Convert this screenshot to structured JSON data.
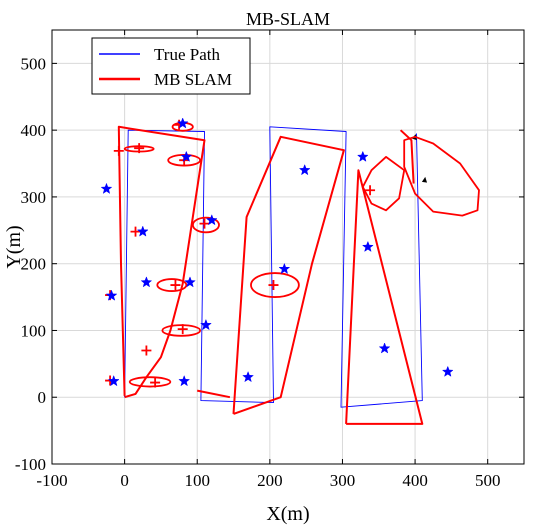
{
  "chart_data": {
    "type": "line",
    "title": "MB-SLAM",
    "xlabel": "X(m)",
    "ylabel": "Y(m)",
    "xlim": [
      -100,
      550
    ],
    "ylim": [
      -100,
      550
    ],
    "xticks": [
      -100,
      0,
      100,
      200,
      300,
      400,
      500
    ],
    "yticks": [
      -100,
      0,
      100,
      200,
      300,
      400,
      500
    ],
    "xtick_labels": [
      "-100",
      "0",
      "100",
      "200",
      "300",
      "400",
      "500"
    ],
    "ytick_labels": [
      "-100",
      "0",
      "100",
      "200",
      "300",
      "400",
      "500"
    ],
    "grid": true,
    "legend_position": "top-left",
    "series": [
      {
        "name": "True Path",
        "color": "#0000ff",
        "points": [
          [
            0,
            0
          ],
          [
            5,
            400
          ],
          [
            110,
            398
          ],
          [
            105,
            -5
          ],
          [
            205,
            -8
          ],
          [
            200,
            405
          ],
          [
            305,
            398
          ],
          [
            298,
            -15
          ],
          [
            410,
            -5
          ],
          [
            402,
            395
          ]
        ]
      },
      {
        "name": "MB SLAM",
        "color": "#ff0000",
        "points": [
          [
            0,
            2
          ],
          [
            -5,
            200
          ],
          [
            -8,
            405
          ],
          [
            110,
            385
          ],
          [
            80,
            170
          ],
          [
            63,
            100
          ],
          [
            50,
            60
          ],
          [
            30,
            30
          ],
          [
            15,
            5
          ],
          [
            0,
            0
          ]
        ],
        "segments": [
          [
            [
              100,
              10
            ],
            [
              145,
              0
            ]
          ],
          [
            [
              150,
              -25
            ],
            [
              168,
              270
            ],
            [
              215,
              390
            ],
            [
              302,
              370
            ],
            [
              258,
              200
            ],
            [
              215,
              0
            ],
            [
              150,
              -25
            ]
          ],
          [
            [
              305,
              -40
            ],
            [
              322,
              340
            ],
            [
              410,
              -40
            ],
            [
              305,
              -40
            ]
          ],
          [
            [
              380,
              400
            ],
            [
              395,
              385
            ],
            [
              398,
              320
            ]
          ]
        ],
        "arrows": [
          [
            [
              397,
              380
            ],
            [
              401,
              394
            ]
          ],
          [
            [
              410,
              300
            ],
            [
              414,
              330
            ]
          ]
        ]
      }
    ],
    "landmarks": {
      "color": "#0000ff",
      "marker": "star",
      "points": [
        [
          80,
          410
        ],
        [
          328,
          360
        ],
        [
          248,
          340
        ],
        [
          -25,
          312
        ],
        [
          85,
          360
        ],
        [
          120,
          265
        ],
        [
          25,
          248
        ],
        [
          335,
          225
        ],
        [
          220,
          192
        ],
        [
          30,
          172
        ],
        [
          90,
          172
        ],
        [
          -18,
          152
        ],
        [
          112,
          108
        ],
        [
          358,
          73
        ],
        [
          445,
          38
        ],
        [
          170,
          30
        ],
        [
          82,
          24
        ],
        [
          -15,
          24
        ]
      ]
    },
    "estimated_landmarks": {
      "color": "#ff0000",
      "marker": "plus",
      "points": [
        [
          75,
          408
        ],
        [
          20,
          373
        ],
        [
          -8,
          369
        ],
        [
          82,
          355
        ],
        [
          338,
          310
        ],
        [
          110,
          260
        ],
        [
          15,
          248
        ],
        [
          205,
          168
        ],
        [
          70,
          168
        ],
        [
          80,
          102
        ],
        [
          30,
          70
        ],
        [
          -20,
          153
        ],
        [
          -20,
          25
        ],
        [
          42,
          22
        ]
      ]
    },
    "uncertainty_ellipses": {
      "color": "#ff0000",
      "items": [
        {
          "cx": 80,
          "cy": 405,
          "rx": 14,
          "ry": 6
        },
        {
          "cx": 20,
          "cy": 372,
          "rx": 20,
          "ry": 4
        },
        {
          "cx": 82,
          "cy": 355,
          "rx": 22,
          "ry": 8
        },
        {
          "cx": 112,
          "cy": 258,
          "rx": 18,
          "ry": 11
        },
        {
          "cx": 65,
          "cy": 168,
          "rx": 20,
          "ry": 9
        },
        {
          "cx": 207,
          "cy": 168,
          "rx": 33,
          "ry": 18
        },
        {
          "cx": 78,
          "cy": 100,
          "rx": 26,
          "ry": 8
        },
        {
          "cx": 35,
          "cy": 23,
          "rx": 28,
          "ry": 7
        }
      ],
      "blobs": [
        [
          [
            340,
            340
          ],
          [
            360,
            360
          ],
          [
            385,
            340
          ],
          [
            378,
            298
          ],
          [
            360,
            280
          ],
          [
            340,
            290
          ],
          [
            328,
            315
          ],
          [
            340,
            340
          ]
        ],
        [
          [
            385,
            385
          ],
          [
            400,
            390
          ],
          [
            425,
            380
          ],
          [
            462,
            350
          ],
          [
            488,
            310
          ],
          [
            486,
            280
          ],
          [
            465,
            272
          ],
          [
            425,
            278
          ],
          [
            400,
            305
          ],
          [
            385,
            345
          ],
          [
            385,
            385
          ]
        ]
      ]
    }
  }
}
